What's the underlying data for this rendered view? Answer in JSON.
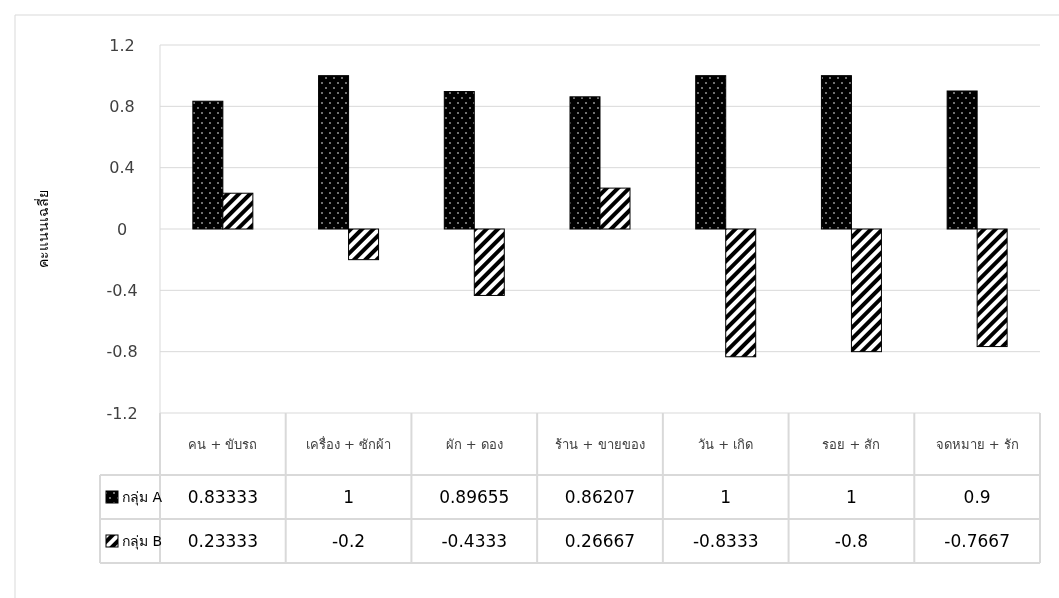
{
  "chart_data": {
    "type": "bar",
    "ylabel": "คะแนนเฉลี่ย",
    "categories": [
      "คน + ขับรถ",
      "เครื่อง + ซักผ้า",
      "ผัก + ดอง",
      "ร้าน + ขายของ",
      "วัน + เกิด",
      "รอย + สัก",
      "จดหมาย + รัก"
    ],
    "series": [
      {
        "name": "กลุ่ม A",
        "color": "#000000",
        "values": [
          0.83333,
          1,
          0.89655,
          0.86207,
          1,
          1,
          0.9
        ]
      },
      {
        "name": "กลุ่ม B",
        "color": "#000000",
        "values": [
          0.23333,
          -0.2,
          -0.4333,
          0.26667,
          -0.8333,
          -0.8,
          -0.7667
        ]
      }
    ],
    "ylim": [
      -1.2,
      1.2
    ],
    "yticks": [
      -1.2,
      -0.8,
      -0.4,
      0,
      0.4,
      0.8,
      1.2
    ],
    "grid": "y",
    "legend": "bottom",
    "data_labels": true
  }
}
